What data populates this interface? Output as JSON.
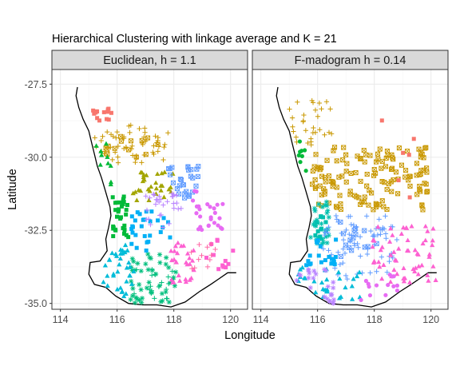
{
  "chart_data": {
    "type": "scatter",
    "title": "Hierarchical Clustering with linkage average and K = 21",
    "xlabel": "Longitude",
    "ylabel": "Latitude",
    "xlim": [
      113.7,
      120.6
    ],
    "ylim": [
      -35.2,
      -27.0
    ],
    "x_ticks": [
      114,
      116,
      118,
      120
    ],
    "x_tick_labels": [
      "114",
      "116",
      "118",
      "120"
    ],
    "y_ticks": [
      -27.5,
      -30.0,
      -32.5,
      -35.0
    ],
    "y_tick_labels": [
      "-27.5",
      "-30.0",
      "-32.5",
      "-35.0"
    ],
    "grid": true,
    "legend": "none",
    "palette": [
      "#F8766D",
      "#E58700",
      "#C99800",
      "#A3A500",
      "#6BB100",
      "#00BA38",
      "#00BF7D",
      "#00C0AF",
      "#00BCD8",
      "#00B0F6",
      "#619CFF",
      "#B983FF",
      "#E76BF3",
      "#FD61D1",
      "#FF67A4"
    ],
    "coastline": [
      [
        114.6,
        -27.6
      ],
      [
        114.55,
        -27.9
      ],
      [
        114.65,
        -28.3
      ],
      [
        114.8,
        -28.7
      ],
      [
        115.0,
        -29.1
      ],
      [
        115.1,
        -29.5
      ],
      [
        115.2,
        -29.9
      ],
      [
        115.3,
        -30.3
      ],
      [
        115.45,
        -30.7
      ],
      [
        115.6,
        -31.2
      ],
      [
        115.75,
        -31.7
      ],
      [
        115.78,
        -32.0
      ],
      [
        115.7,
        -32.4
      ],
      [
        115.6,
        -32.8
      ],
      [
        115.65,
        -33.2
      ],
      [
        115.4,
        -33.55
      ],
      [
        115.05,
        -33.6
      ],
      [
        115.0,
        -34.0
      ],
      [
        115.2,
        -34.35
      ],
      [
        115.6,
        -34.45
      ],
      [
        115.95,
        -34.75
      ],
      [
        116.4,
        -35.0
      ],
      [
        116.9,
        -35.05
      ],
      [
        117.4,
        -35.05
      ],
      [
        117.9,
        -35.12
      ],
      [
        118.4,
        -34.95
      ],
      [
        118.9,
        -34.6
      ],
      [
        119.3,
        -34.35
      ],
      [
        119.6,
        -34.15
      ],
      [
        119.9,
        -33.95
      ],
      [
        120.2,
        -33.95
      ]
    ],
    "panels": [
      {
        "label": "Euclidean, h = 1.1",
        "clusters": [
          {
            "color": "#F8766D",
            "shape": "square",
            "lon": [
              115.0,
              115.8
            ],
            "lat": [
              -28.3,
              -28.8
            ],
            "n": 14
          },
          {
            "color": "#C99800",
            "shape": "plus",
            "lon": [
              115.2,
              117.8
            ],
            "lat": [
              -28.9,
              -30.2
            ],
            "n": 55
          },
          {
            "color": "#C99800",
            "shape": "boxtimes",
            "lon": [
              115.4,
              117.5
            ],
            "lat": [
              -29.2,
              -30.0
            ],
            "n": 14
          },
          {
            "color": "#A3A500",
            "shape": "triangle",
            "lon": [
              116.5,
              118.0
            ],
            "lat": [
              -30.5,
              -31.5
            ],
            "n": 30
          },
          {
            "color": "#00BA38",
            "shape": "square",
            "lon": [
              115.6,
              116.4
            ],
            "lat": [
              -31.2,
              -32.8
            ],
            "n": 32
          },
          {
            "color": "#00BA38",
            "shape": "triangle",
            "lon": [
              114.9,
              115.8
            ],
            "lat": [
              -29.5,
              -31.0
            ],
            "n": 10
          },
          {
            "color": "#00BF7D",
            "shape": "star",
            "lon": [
              116.4,
              118.1
            ],
            "lat": [
              -33.3,
              -35.0
            ],
            "n": 45
          },
          {
            "color": "#00BF7D",
            "shape": "plus",
            "lon": [
              116.5,
              118.0
            ],
            "lat": [
              -33.8,
              -35.0
            ],
            "n": 20
          },
          {
            "color": "#00B0F6",
            "shape": "square",
            "lon": [
              116.5,
              117.9
            ],
            "lat": [
              -31.8,
              -33.2
            ],
            "n": 28
          },
          {
            "color": "#00BCD8",
            "shape": "triangle",
            "lon": [
              115.3,
              116.6
            ],
            "lat": [
              -33.0,
              -34.8
            ],
            "n": 35
          },
          {
            "color": "#619CFF",
            "shape": "boxtimes",
            "lon": [
              117.8,
              118.9
            ],
            "lat": [
              -30.3,
              -31.5
            ],
            "n": 28
          },
          {
            "color": "#B983FF",
            "shape": "plus",
            "lon": [
              117.0,
              118.3
            ],
            "lat": [
              -31.2,
              -32.4
            ],
            "n": 30
          },
          {
            "color": "#E76BF3",
            "shape": "circle",
            "lon": [
              118.6,
              119.8
            ],
            "lat": [
              -31.0,
              -32.5
            ],
            "n": 26
          },
          {
            "color": "#FD61D1",
            "shape": "triangle",
            "lon": [
              117.9,
              118.8
            ],
            "lat": [
              -32.8,
              -34.3
            ],
            "n": 28
          },
          {
            "color": "#FD61D1",
            "shape": "square",
            "lon": [
              119.1,
              120.2
            ],
            "lat": [
              -32.8,
              -34.0
            ],
            "n": 12
          },
          {
            "color": "#FF67A4",
            "shape": "plus",
            "lon": [
              118.6,
              119.5
            ],
            "lat": [
              -32.9,
              -34.0
            ],
            "n": 12
          }
        ]
      },
      {
        "label": "F-madogram h = 0.14",
        "clusters": [
          {
            "color": "#C99800",
            "shape": "plus",
            "lon": [
              114.8,
              116.5
            ],
            "lat": [
              -28.0,
              -29.6
            ],
            "n": 30
          },
          {
            "color": "#C99800",
            "shape": "boxtimes",
            "lon": [
              115.8,
              120.0
            ],
            "lat": [
              -29.6,
              -31.8
            ],
            "n": 140
          },
          {
            "color": "#00BA38",
            "shape": "circle",
            "lon": [
              114.7,
              115.6
            ],
            "lat": [
              -29.4,
              -30.5
            ],
            "n": 8
          },
          {
            "color": "#00C0AF",
            "shape": "star",
            "lon": [
              115.5,
              116.5
            ],
            "lat": [
              -31.5,
              -33.0
            ],
            "n": 30
          },
          {
            "color": "#00C0AF",
            "shape": "square",
            "lon": [
              115.6,
              116.3
            ],
            "lat": [
              -32.0,
              -32.8
            ],
            "n": 12
          },
          {
            "color": "#619CFF",
            "shape": "plus",
            "lon": [
              116.2,
              118.9
            ],
            "lat": [
              -32.0,
              -34.2
            ],
            "n": 70
          },
          {
            "color": "#619CFF",
            "shape": "boxtimes",
            "lon": [
              116.8,
              118.2
            ],
            "lat": [
              -32.2,
              -33.4
            ],
            "n": 15
          },
          {
            "color": "#00B0F6",
            "shape": "square",
            "lon": [
              115.6,
              116.8
            ],
            "lat": [
              -32.8,
              -33.8
            ],
            "n": 22
          },
          {
            "color": "#00BCD8",
            "shape": "triangle",
            "lon": [
              115.3,
              117.5
            ],
            "lat": [
              -33.7,
              -35.0
            ],
            "n": 30
          },
          {
            "color": "#B983FF",
            "shape": "star",
            "lon": [
              115.2,
              116.6
            ],
            "lat": [
              -33.8,
              -35.0
            ],
            "n": 25
          },
          {
            "color": "#FD61D1",
            "shape": "triangle",
            "lon": [
              117.9,
              120.2
            ],
            "lat": [
              -32.3,
              -34.3
            ],
            "n": 60
          },
          {
            "color": "#E76BF3",
            "shape": "circle",
            "lon": [
              117.4,
              118.9
            ],
            "lat": [
              -34.0,
              -34.9
            ],
            "n": 14
          },
          {
            "color": "#F8766D",
            "shape": "square",
            "lon": [
              118.2,
              119.6
            ],
            "lat": [
              -28.1,
              -31.8
            ],
            "n": 6
          }
        ]
      }
    ]
  }
}
